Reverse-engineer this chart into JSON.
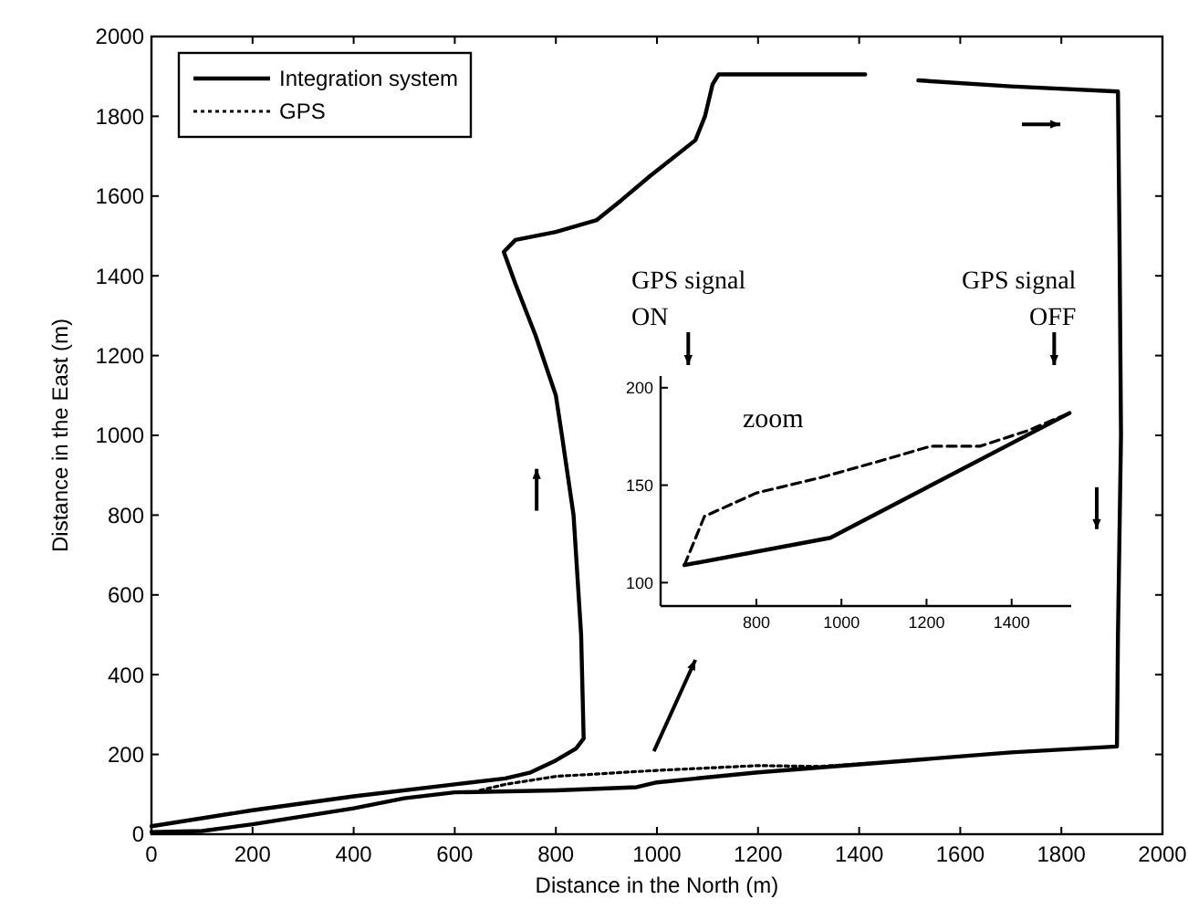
{
  "chart_data": [
    {
      "type": "line",
      "xlabel": "Distance in the North (m)",
      "ylabel": "Distance in the East (m)",
      "xlim": [
        0,
        2000
      ],
      "ylim": [
        0,
        2000
      ],
      "xticks": [
        0,
        200,
        400,
        600,
        800,
        1000,
        1200,
        1400,
        1600,
        1800,
        2000
      ],
      "yticks": [
        0,
        200,
        400,
        600,
        800,
        1000,
        1200,
        1400,
        1600,
        1800,
        2000
      ],
      "legend": "top left",
      "series": [
        {
          "name": "Integration system",
          "color": "#000000",
          "line_style": "solid",
          "x": [
            0,
            200,
            400,
            600,
            700,
            750,
            800,
            840,
            855,
            850,
            835,
            812,
            800,
            760,
            720,
            697,
            720,
            800,
            881,
            930,
            986,
            1076,
            1095,
            1110,
            1122,
            1412,
            1460,
            1517,
            1700,
            1912,
            1915,
            1918,
            1912,
            1910,
            1700,
            1400,
            1200,
            1000,
            960,
            800,
            600,
            500,
            400,
            200,
            100,
            0
          ],
          "values": [
            20,
            60,
            95,
            125,
            140,
            155,
            185,
            215,
            240,
            500,
            800,
            1000,
            1100,
            1250,
            1380,
            1460,
            1490,
            1510,
            1540,
            1590,
            1650,
            1740,
            1800,
            1880,
            1905,
            1905,
            null,
            1890,
            1875,
            1862,
            1500,
            1000,
            500,
            220,
            205,
            175,
            155,
            130,
            118,
            110,
            105,
            90,
            65,
            25,
            8,
            5
          ]
        },
        {
          "name": "GPS",
          "color": "#000000",
          "line_style": "dotted",
          "x": [
            650,
            700,
            800,
            1000,
            1200,
            1320,
            1500
          ],
          "values": [
            110,
            125,
            145,
            160,
            172,
            170,
            184
          ]
        }
      ]
    },
    {
      "type": "line",
      "xlim": [
        575,
        1540
      ],
      "ylim": [
        88,
        206
      ],
      "xticks": [
        800,
        1000,
        1200,
        1400
      ],
      "yticks": [
        100,
        150,
        200
      ],
      "annotations": [
        "GPS signal ON",
        "GPS signal OFF",
        "zoom"
      ],
      "series": [
        {
          "color": "#000000",
          "line_style": "solid",
          "x": [
            631,
            974,
            1536
          ],
          "values": [
            109,
            123,
            187
          ]
        },
        {
          "color": "#000000",
          "line_style": "dashed",
          "x": [
            631,
            678,
            800,
            953,
            1100,
            1210,
            1326,
            1438,
            1536
          ],
          "values": [
            109,
            134,
            146,
            154,
            163,
            170,
            170,
            178,
            187
          ]
        }
      ]
    }
  ]
}
